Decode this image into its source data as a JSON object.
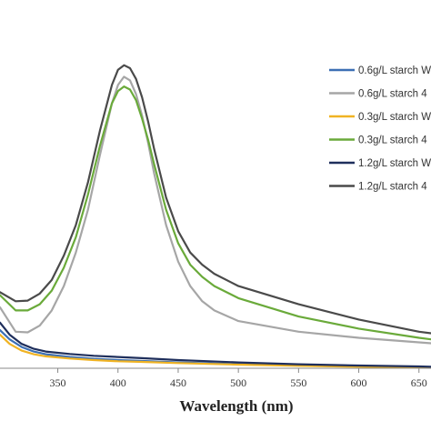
{
  "chart_data": {
    "type": "line",
    "title": "",
    "xlabel": "Wavelength (nm)",
    "ylabel": "",
    "xlim": [
      302,
      660
    ],
    "ylim": [
      0,
      1.0
    ],
    "xticks": [
      350,
      400,
      450,
      500,
      550,
      600,
      650
    ],
    "xtick_labels": [
      "350",
      "400",
      "450",
      "500",
      "550",
      "600",
      "650"
    ],
    "grid": false,
    "legend_position": "right",
    "series": [
      {
        "name": "0.6g/L starch W",
        "color": "#3c6fb4",
        "x": [
          302,
          310,
          320,
          330,
          340,
          360,
          380,
          400,
          420,
          450,
          500,
          550,
          600,
          650,
          660
        ],
        "y": [
          0.125,
          0.095,
          0.07,
          0.055,
          0.046,
          0.037,
          0.031,
          0.027,
          0.024,
          0.019,
          0.013,
          0.009,
          0.006,
          0.003,
          0.002
        ]
      },
      {
        "name": "0.6g/L starch 4",
        "color": "#a6a6a6",
        "x": [
          302,
          315,
          325,
          335,
          345,
          355,
          365,
          375,
          385,
          395,
          400,
          405,
          410,
          415,
          420,
          425,
          430,
          440,
          450,
          460,
          470,
          480,
          500,
          550,
          600,
          650,
          660
        ],
        "y": [
          0.2,
          0.12,
          0.118,
          0.14,
          0.19,
          0.27,
          0.38,
          0.52,
          0.7,
          0.87,
          0.93,
          0.957,
          0.945,
          0.9,
          0.83,
          0.74,
          0.64,
          0.47,
          0.35,
          0.27,
          0.22,
          0.19,
          0.155,
          0.12,
          0.1,
          0.085,
          0.082
        ]
      },
      {
        "name": "0.3g/L starch W",
        "color": "#f0b323",
        "x": [
          302,
          310,
          320,
          330,
          340,
          360,
          380,
          400,
          420,
          450,
          500,
          550,
          600,
          650,
          660
        ],
        "y": [
          0.11,
          0.08,
          0.058,
          0.046,
          0.039,
          0.032,
          0.027,
          0.023,
          0.021,
          0.017,
          0.012,
          0.008,
          0.005,
          0.003,
          0.002
        ]
      },
      {
        "name": "0.3g/L starch 4",
        "color": "#6aaa3a",
        "x": [
          302,
          315,
          325,
          335,
          345,
          355,
          365,
          375,
          385,
          395,
          400,
          405,
          410,
          415,
          420,
          425,
          430,
          440,
          450,
          460,
          470,
          480,
          500,
          550,
          600,
          650,
          660
        ],
        "y": [
          0.24,
          0.19,
          0.19,
          0.21,
          0.255,
          0.33,
          0.43,
          0.57,
          0.73,
          0.87,
          0.91,
          0.925,
          0.915,
          0.88,
          0.82,
          0.75,
          0.67,
          0.52,
          0.41,
          0.34,
          0.3,
          0.27,
          0.23,
          0.17,
          0.13,
          0.1,
          0.095
        ]
      },
      {
        "name": "1.2g/L starch W",
        "color": "#1f2f5c",
        "x": [
          302,
          310,
          320,
          330,
          340,
          360,
          380,
          400,
          420,
          450,
          500,
          550,
          600,
          650,
          660
        ],
        "y": [
          0.15,
          0.11,
          0.08,
          0.064,
          0.055,
          0.047,
          0.041,
          0.037,
          0.033,
          0.027,
          0.019,
          0.013,
          0.009,
          0.006,
          0.005
        ]
      },
      {
        "name": "1.2g/L starch 4",
        "color": "#4a4a4a",
        "x": [
          302,
          315,
          325,
          335,
          345,
          355,
          365,
          375,
          385,
          395,
          400,
          405,
          410,
          415,
          420,
          425,
          430,
          440,
          450,
          460,
          470,
          480,
          500,
          550,
          600,
          650,
          660
        ],
        "y": [
          0.25,
          0.22,
          0.222,
          0.245,
          0.29,
          0.37,
          0.47,
          0.61,
          0.78,
          0.93,
          0.98,
          0.995,
          0.985,
          0.95,
          0.89,
          0.81,
          0.72,
          0.56,
          0.45,
          0.38,
          0.34,
          0.31,
          0.27,
          0.21,
          0.16,
          0.12,
          0.115
        ]
      }
    ]
  }
}
